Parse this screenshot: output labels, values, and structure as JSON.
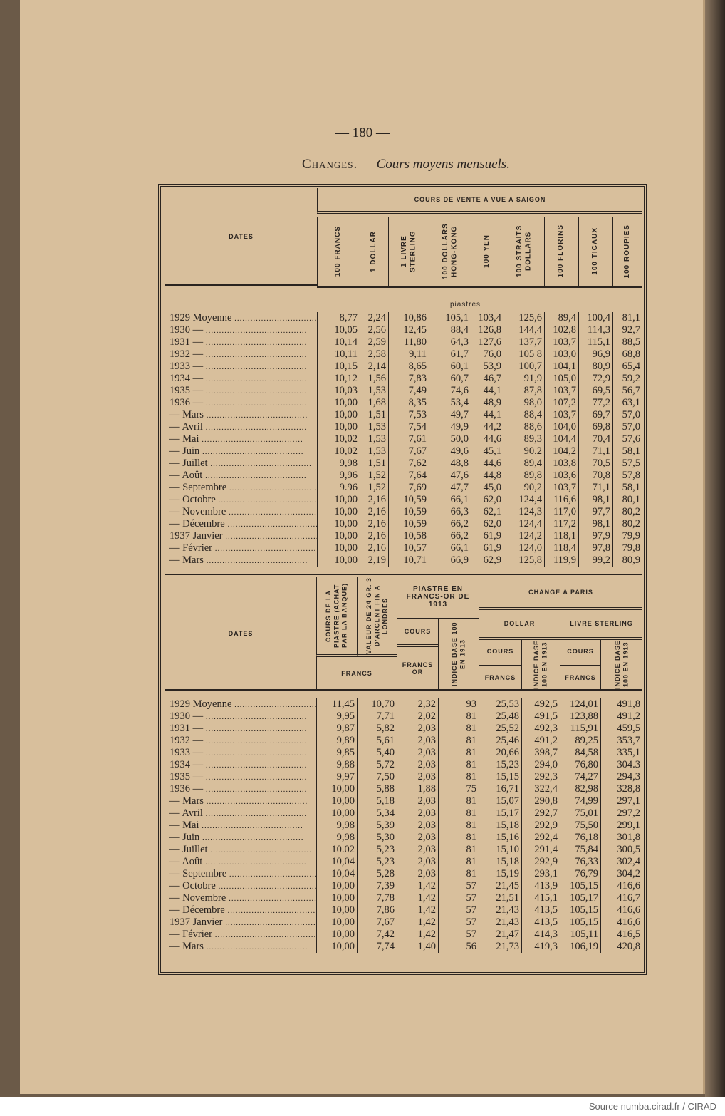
{
  "page_number": "— 180 —",
  "title": {
    "prefix": "Changes.",
    "rest": "— Cours moyens mensuels."
  },
  "top": {
    "dates_header": "DATES",
    "group_header": "COURS DE VENTE A VUE A SAIGON",
    "columns": [
      "100 FRANCS",
      "1 DOLLAR",
      "1 LIVRE STERLING",
      "100 DOLLARS HONG-KONG",
      "100 YEN",
      "100 STRAITS DOLLARS",
      "100 FLORINS",
      "100 TICAUX",
      "100 ROUPIES"
    ],
    "unit": "piastres",
    "rows": [
      [
        "1929 Moyenne",
        "8,77",
        "2,24",
        "10,86",
        "105,1",
        "103,4",
        "125,6",
        "89,4",
        "100,4",
        "81,1"
      ],
      [
        "1930 —",
        "10,05",
        "2,56",
        "12,45",
        "88,4",
        "126,8",
        "144,4",
        "102,8",
        "114,3",
        "92,7"
      ],
      [
        "1931 —",
        "10,14",
        "2,59",
        "11,80",
        "64,3",
        "127,6",
        "137,7",
        "103,7",
        "115,1",
        "88,5"
      ],
      [
        "1932 —",
        "10,11",
        "2,58",
        "9,11",
        "61,7",
        "76,0",
        "105 8",
        "103,0",
        "96,9",
        "68,8"
      ],
      [
        "1933 —",
        "10,15",
        "2,14",
        "8,65",
        "60,1",
        "53,9",
        "100,7",
        "104,1",
        "80,9",
        "65,4"
      ],
      [
        "1934 —",
        "10,12",
        "1,56",
        "7,83",
        "60,7",
        "46,7",
        "91,9",
        "105,0",
        "72,9",
        "59,2"
      ],
      [
        "1935 —",
        "10,03",
        "1,53",
        "7,49",
        "74,6",
        "44,1",
        "87,8",
        "103,7",
        "69,5",
        "56,7"
      ],
      [
        "1936 —",
        "10,00",
        "1,68",
        "8,35",
        "53,4",
        "48,9",
        "98,0",
        "107,2",
        "77,2",
        "63,1"
      ],
      [
        "— Mars",
        "10,00",
        "1,51",
        "7,53",
        "49,7",
        "44,1",
        "88,4",
        "103,7",
        "69,7",
        "57,0"
      ],
      [
        "— Avril",
        "10,00",
        "1,53",
        "7,54",
        "49,9",
        "44,2",
        "88,6",
        "104,0",
        "69,8",
        "57,0"
      ],
      [
        "— Mai",
        "10,02",
        "1,53",
        "7,61",
        "50,0",
        "44,6",
        "89,3",
        "104,4",
        "70,4",
        "57,6"
      ],
      [
        "— Juin",
        "10,02",
        "1,53",
        "7,67",
        "49,6",
        "45,1",
        "90.2",
        "104,2",
        "71,1",
        "58,1"
      ],
      [
        "— Juillet",
        "9,98",
        "1,51",
        "7,62",
        "48,8",
        "44,6",
        "89,4",
        "103,8",
        "70,5",
        "57,5"
      ],
      [
        "— Août",
        "9,96",
        "1,52",
        "7,64",
        "47,6",
        "44,8",
        "89,8",
        "103,6",
        "70,8",
        "57,8"
      ],
      [
        "— Septembre",
        "9.96",
        "1,52",
        "7,69",
        "47,7",
        "45,0",
        "90,2",
        "103,7",
        "71,1",
        "58,1"
      ],
      [
        "— Octobre",
        "10,00",
        "2,16",
        "10,59",
        "66,1",
        "62,0",
        "124,4",
        "116,6",
        "98,1",
        "80,1"
      ],
      [
        "— Novembre",
        "10,00",
        "2,16",
        "10,59",
        "66,3",
        "62,1",
        "124,3",
        "117,0",
        "97,7",
        "80,2"
      ],
      [
        "— Décembre",
        "10,00",
        "2,16",
        "10,59",
        "66,2",
        "62,0",
        "124,4",
        "117,2",
        "98,1",
        "80,2"
      ],
      [
        "1937 Janvier",
        "10,00",
        "2,16",
        "10,58",
        "66,2",
        "61,9",
        "124,2",
        "118,1",
        "97,9",
        "79,9"
      ],
      [
        "— Février",
        "10,00",
        "2,16",
        "10,57",
        "66,1",
        "61,9",
        "124,0",
        "118,4",
        "97,8",
        "79,8"
      ],
      [
        "— Mars",
        "10,00",
        "2,19",
        "10,71",
        "66,9",
        "62,9",
        "125,8",
        "119,9",
        "99,2",
        "80,9"
      ]
    ]
  },
  "bottom": {
    "dates_header": "DATES",
    "col1": "COURS DE LA PIASTRE (ACHAT PAR LA BANQUE)",
    "col2": "VALEUR DE 24 GR. 3 D'ARGENT FIN A LONDRES",
    "francs": "FRANCS",
    "piastre_group": "PIASTRE EN FRANCS-OR DE 1913",
    "cours": "COURS",
    "francs_or": "FRANCS OR",
    "indice": "INDICE BASE 100 EN 1913",
    "change_paris": "CHANGE A PARIS",
    "dollar": "DOLLAR",
    "livre": "LIVRE STERLING",
    "rows": [
      [
        "1929 Moyenne",
        "11,45",
        "10,70",
        "2,32",
        "93",
        "25,53",
        "492,5",
        "124,01",
        "491,8"
      ],
      [
        "1930 —",
        "9,95",
        "7,71",
        "2,02",
        "81",
        "25,48",
        "491,5",
        "123,88",
        "491,2"
      ],
      [
        "1931 —",
        "9,87",
        "5,82",
        "2,03",
        "81",
        "25,52",
        "492,3",
        "115,91",
        "459,5"
      ],
      [
        "1932 —",
        "9,89",
        "5,61",
        "2,03",
        "81",
        "25,46",
        "491,2",
        "89,25",
        "353,7"
      ],
      [
        "1933 —",
        "9,85",
        "5,40",
        "2,03",
        "81",
        "20,66",
        "398,7",
        "84,58",
        "335,1"
      ],
      [
        "1934 —",
        "9,88",
        "5,72",
        "2,03",
        "81",
        "15,23",
        "294,0",
        "76,80",
        "304.3"
      ],
      [
        "1935 —",
        "9,97",
        "7,50",
        "2,03",
        "81",
        "15,15",
        "292,3",
        "74,27",
        "294,3"
      ],
      [
        "1936 —",
        "10,00",
        "5,88",
        "1,88",
        "75",
        "16,71",
        "322,4",
        "82,98",
        "328,8"
      ],
      [
        "— Mars",
        "10,00",
        "5,18",
        "2,03",
        "81",
        "15,07",
        "290,8",
        "74,99",
        "297,1"
      ],
      [
        "— Avril",
        "10,00",
        "5,34",
        "2,03",
        "81",
        "15,17",
        "292,7",
        "75,01",
        "297,2"
      ],
      [
        "— Mai",
        "9,98",
        "5,39",
        "2,03",
        "81",
        "15,18",
        "292,9",
        "75,50",
        "299,1"
      ],
      [
        "— Juin",
        "9,98",
        "5,30",
        "2,03",
        "81",
        "15,16",
        "292,4",
        "76,18",
        "301,8"
      ],
      [
        "— Juillet",
        "10.02",
        "5,23",
        "2,03",
        "81",
        "15,10",
        "291,4",
        "75,84",
        "300,5"
      ],
      [
        "— Août",
        "10,04",
        "5,23",
        "2,03",
        "81",
        "15,18",
        "292,9",
        "76,33",
        "302,4"
      ],
      [
        "— Septembre",
        "10,04",
        "5,28",
        "2,03",
        "81",
        "15,19",
        "293,1",
        "76,79",
        "304,2"
      ],
      [
        "— Octobre",
        "10,00",
        "7,39",
        "1,42",
        "57",
        "21,45",
        "413,9",
        "105,15",
        "416,6"
      ],
      [
        "— Novembre",
        "10,00",
        "7,78",
        "1,42",
        "57",
        "21,51",
        "415,1",
        "105,17",
        "416,7"
      ],
      [
        "— Décembre",
        "10,00",
        "7,86",
        "1,42",
        "57",
        "21,43",
        "413,5",
        "105,15",
        "416,6"
      ],
      [
        "1937 Janvier",
        "10,00",
        "7,67",
        "1,42",
        "57",
        "21,43",
        "413,5",
        "105,15",
        "416,6"
      ],
      [
        "— Février",
        "10,00",
        "7,42",
        "1,42",
        "57",
        "21,47",
        "414,3",
        "105,11",
        "416,5"
      ],
      [
        "— Mars",
        "10,00",
        "7,74",
        "1,40",
        "56",
        "21,73",
        "419,3",
        "106,19",
        "420,8"
      ]
    ]
  },
  "footer": "Source numba.cirad.fr / CIRAD"
}
